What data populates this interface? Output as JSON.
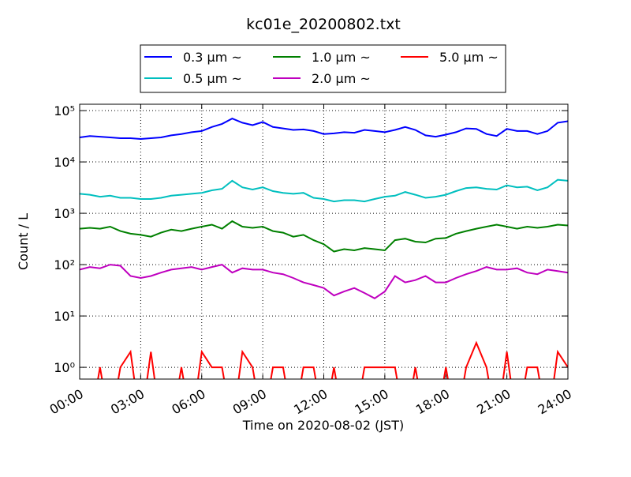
{
  "chart_data": {
    "type": "line",
    "title": "kc01e_20200802.txt",
    "x_label": "Time on 2020-08-02 (JST)",
    "y_label": "Count / L",
    "log_y": true,
    "grid": true,
    "legend_loc": "upper center",
    "xlim": [
      0,
      24
    ],
    "ylim": [
      0.59,
      133000
    ],
    "xticks": [
      {
        "value": 0,
        "label": "00:00"
      },
      {
        "value": 3,
        "label": "03:00"
      },
      {
        "value": 6,
        "label": "06:00"
      },
      {
        "value": 9,
        "label": "09:00"
      },
      {
        "value": 12,
        "label": "12:00"
      },
      {
        "value": 15,
        "label": "15:00"
      },
      {
        "value": 18,
        "label": "18:00"
      },
      {
        "value": 21,
        "label": "21:00"
      },
      {
        "value": 24,
        "label": "24:00"
      }
    ],
    "yticks": [
      {
        "value": 1,
        "label": "10⁰"
      },
      {
        "value": 10,
        "label": "10¹"
      },
      {
        "value": 100,
        "label": "10²"
      },
      {
        "value": 1000,
        "label": "10³"
      },
      {
        "value": 10000,
        "label": "10⁴"
      },
      {
        "value": 100000,
        "label": "10⁵"
      }
    ],
    "x": [
      0,
      0.5,
      1,
      1.5,
      2,
      2.5,
      3,
      3.5,
      4,
      4.5,
      5,
      5.5,
      6,
      6.5,
      7,
      7.5,
      8,
      8.5,
      9,
      9.5,
      10,
      10.5,
      11,
      11.5,
      12,
      12.5,
      13,
      13.5,
      14,
      14.5,
      15,
      15.5,
      16,
      16.5,
      17,
      17.5,
      18,
      18.5,
      19,
      19.5,
      20,
      20.5,
      21,
      21.5,
      22,
      22.5,
      23,
      23.5,
      24
    ],
    "series": [
      {
        "name": "0.3 μm ~",
        "color": "#0000ff",
        "values": [
          30000,
          32000,
          31000,
          30000,
          29000,
          29000,
          28000,
          29000,
          30000,
          33000,
          35000,
          38000,
          40000,
          48000,
          55000,
          70000,
          58000,
          52000,
          60000,
          48000,
          45000,
          42000,
          43000,
          40000,
          35000,
          36000,
          38000,
          37000,
          42000,
          40000,
          38000,
          42000,
          48000,
          42000,
          33000,
          31000,
          34000,
          38000,
          45000,
          44000,
          35000,
          32000,
          44000,
          40000,
          40000,
          35000,
          40000,
          58000,
          62000
        ]
      },
      {
        "name": "0.5 μm ~",
        "color": "#00bfbf",
        "values": [
          2400,
          2300,
          2100,
          2200,
          2000,
          2000,
          1900,
          1900,
          2000,
          2200,
          2300,
          2400,
          2500,
          2800,
          3000,
          4300,
          3200,
          2900,
          3200,
          2700,
          2500,
          2400,
          2500,
          2000,
          1900,
          1700,
          1800,
          1800,
          1700,
          1900,
          2100,
          2200,
          2600,
          2300,
          2000,
          2100,
          2300,
          2700,
          3100,
          3200,
          3000,
          2900,
          3500,
          3200,
          3300,
          2800,
          3200,
          4500,
          4300
        ]
      },
      {
        "name": "1.0 μm ~",
        "color": "#008000",
        "values": [
          500,
          520,
          500,
          550,
          450,
          400,
          380,
          350,
          420,
          480,
          450,
          500,
          550,
          600,
          500,
          700,
          550,
          520,
          550,
          450,
          420,
          350,
          380,
          300,
          250,
          180,
          200,
          190,
          210,
          200,
          190,
          300,
          320,
          280,
          270,
          320,
          330,
          400,
          450,
          500,
          550,
          600,
          550,
          500,
          550,
          520,
          550,
          600,
          580
        ]
      },
      {
        "name": "2.0 μm ~",
        "color": "#bf00bf",
        "values": [
          80,
          90,
          85,
          100,
          95,
          60,
          55,
          60,
          70,
          80,
          85,
          90,
          80,
          90,
          100,
          70,
          85,
          80,
          80,
          70,
          65,
          55,
          45,
          40,
          35,
          25,
          30,
          35,
          28,
          22,
          30,
          60,
          45,
          50,
          60,
          45,
          45,
          55,
          65,
          75,
          90,
          80,
          80,
          85,
          70,
          65,
          80,
          75,
          70
        ]
      },
      {
        "name": "5.0 μm ~",
        "color": "#ff0000",
        "values": [
          0,
          0,
          1,
          0,
          1,
          2,
          0,
          2,
          0,
          0,
          1,
          0,
          2,
          1,
          1,
          0,
          2,
          1,
          0,
          1,
          1,
          0,
          1,
          1,
          0,
          1,
          0,
          0,
          1,
          1,
          1,
          1,
          0,
          1,
          0,
          0,
          1,
          0,
          1,
          3,
          1,
          0,
          2,
          0,
          1,
          1,
          0,
          2,
          1
        ]
      }
    ]
  }
}
